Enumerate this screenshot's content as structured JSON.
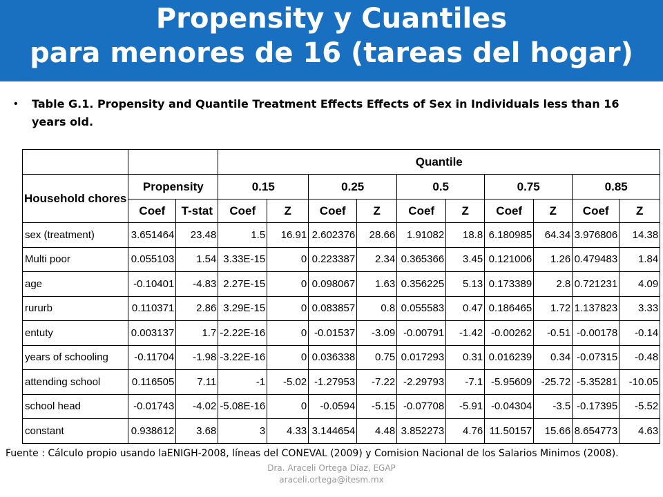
{
  "title": {
    "line1": "Propensity y Cuantiles",
    "line2": "para menores de 16 (tareas del hogar)"
  },
  "caption": "Table G.1. Propensity and Quantile Treatment Effects Effects of Sex in Individuals less than 16 years old.",
  "table": {
    "quantile_header": "Quantile",
    "row_header": "Household chores",
    "propensity_header": "Propensity",
    "quantiles": [
      "0.15",
      "0.25",
      "0.5",
      "0.75",
      "0.85"
    ],
    "sub_headers": [
      "Coef",
      "T-stat",
      "Coef",
      "Z",
      "Coef",
      "Z",
      "Coef",
      "Z",
      "Coef",
      "Z",
      "Coef",
      "Z"
    ],
    "rows": [
      {
        "label": "sex (treatment)",
        "values": [
          "3.651464",
          "23.48",
          "1.5",
          "16.91",
          "2.602376",
          "28.66",
          "1.91082",
          "18.8",
          "6.180985",
          "64.34",
          "3.976806",
          "14.38"
        ]
      },
      {
        "label": "Multi poor",
        "values": [
          "0.055103",
          "1.54",
          "3.33E-15",
          "0",
          "0.223387",
          "2.34",
          "0.365366",
          "3.45",
          "0.121006",
          "1.26",
          "0.479483",
          "1.84"
        ]
      },
      {
        "label": "age",
        "values": [
          "-0.10401",
          "-4.83",
          "2.27E-15",
          "0",
          "0.098067",
          "1.63",
          "0.356225",
          "5.13",
          "0.173389",
          "2.8",
          "0.721231",
          "4.09"
        ]
      },
      {
        "label": "rururb",
        "values": [
          "0.110371",
          "2.86",
          "3.29E-15",
          "0",
          "0.083857",
          "0.8",
          "0.055583",
          "0.47",
          "0.186465",
          "1.72",
          "1.137823",
          "3.33"
        ]
      },
      {
        "label": "entuty",
        "values": [
          "0.003137",
          "1.7",
          "-2.22E-16",
          "0",
          "-0.01537",
          "-3.09",
          "-0.00791",
          "-1.42",
          "-0.00262",
          "-0.51",
          "-0.00178",
          "-0.14"
        ]
      },
      {
        "label": "years of schooling",
        "values": [
          "-0.11704",
          "-1.98",
          "-3.22E-16",
          "0",
          "0.036338",
          "0.75",
          "0.017293",
          "0.31",
          "0.016239",
          "0.34",
          "-0.07315",
          "-0.48"
        ]
      },
      {
        "label": "attending school",
        "values": [
          "0.116505",
          "7.11",
          "-1",
          "-5.02",
          "-1.27953",
          "-7.22",
          "-2.29793",
          "-7.1",
          "-5.95609",
          "-25.72",
          "-5.35281",
          "-10.05"
        ]
      },
      {
        "label": "school head",
        "values": [
          "-0.01743",
          "-4.02",
          "-5.08E-16",
          "0",
          "-0.0594",
          "-5.15",
          "-0.07708",
          "-5.91",
          "-0.04304",
          "-3.5",
          "-0.17395",
          "-5.52"
        ]
      },
      {
        "label": "constant",
        "values": [
          "0.938612",
          "3.68",
          "3",
          "4.33",
          "3.144654",
          "4.48",
          "3.852273",
          "4.76",
          "11.50157",
          "15.66",
          "8.654773",
          "4.63"
        ]
      }
    ]
  },
  "source_note": "Fuente : Cálculo propio usando laENIGH-2008,  líneas del CONEVAL (2009) y Comision Nacional de los Salarios Minimos (2008).",
  "footer": {
    "line1": "Dra. Araceli Ortega Díaz, EGAP",
    "line2": "araceli.ortega@itesm.mx"
  },
  "colors": {
    "banner": "#1a70c0",
    "title_text": "#ffffff"
  }
}
